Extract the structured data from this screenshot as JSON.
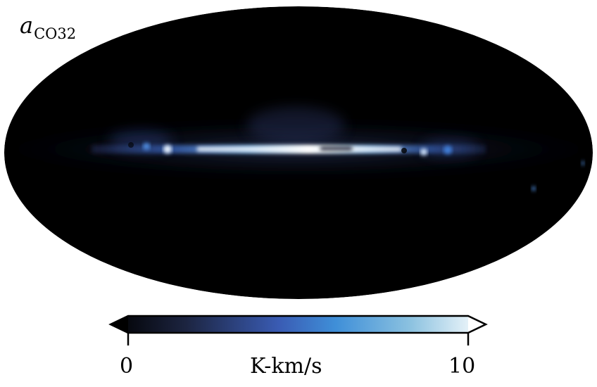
{
  "map": {
    "label_symbol": "a",
    "label_subscript": "CO32",
    "projection": "mollweide",
    "background_color": "#000000"
  },
  "colorbar": {
    "min_label": "0",
    "max_label": "10",
    "unit": "K-km/s",
    "extend": "both",
    "colors": [
      "#000000",
      "#1c2440",
      "#3a5cb4",
      "#3f8fd8",
      "#8cc2e0",
      "#ffffff"
    ]
  }
}
